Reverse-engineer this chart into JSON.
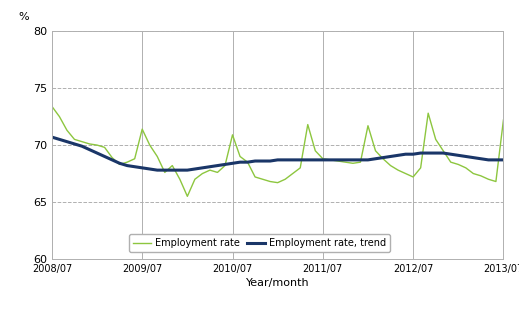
{
  "title": "",
  "ylabel": "%",
  "xlabel": "Year/month",
  "ylim": [
    60,
    80
  ],
  "yticks": [
    60,
    65,
    70,
    75,
    80
  ],
  "background_color": "#ffffff",
  "employment_rate_color": "#8dc63f",
  "trend_color": "#1a3668",
  "employment_rate_label": "Employment rate",
  "trend_label": "Employment rate, trend",
  "x_tick_labels": [
    "2008/07",
    "2009/07",
    "2010/07",
    "2011/07",
    "2012/07",
    "2013/07"
  ],
  "x_tick_positions": [
    0,
    12,
    24,
    36,
    48,
    60
  ],
  "employment_rate": [
    73.4,
    72.5,
    71.3,
    70.5,
    70.3,
    70.1,
    70.0,
    69.8,
    68.9,
    68.3,
    68.5,
    68.8,
    71.4,
    70.0,
    69.0,
    67.6,
    68.2,
    67.0,
    65.5,
    67.0,
    67.5,
    67.8,
    67.6,
    68.2,
    70.9,
    69.0,
    68.5,
    67.2,
    67.0,
    66.8,
    66.7,
    67.0,
    67.5,
    68.0,
    71.8,
    69.5,
    68.8,
    68.7,
    68.6,
    68.5,
    68.4,
    68.5,
    71.7,
    69.5,
    68.8,
    68.2,
    67.8,
    67.5,
    67.2,
    68.0,
    72.8,
    70.5,
    69.5,
    68.5,
    68.3,
    68.0,
    67.5,
    67.3,
    67.0,
    66.8,
    72.2
  ],
  "trend": [
    70.7,
    70.5,
    70.3,
    70.1,
    69.9,
    69.6,
    69.3,
    69.0,
    68.7,
    68.4,
    68.2,
    68.1,
    68.0,
    67.9,
    67.8,
    67.8,
    67.8,
    67.8,
    67.8,
    67.9,
    68.0,
    68.1,
    68.2,
    68.3,
    68.4,
    68.5,
    68.5,
    68.6,
    68.6,
    68.6,
    68.7,
    68.7,
    68.7,
    68.7,
    68.7,
    68.7,
    68.7,
    68.7,
    68.7,
    68.7,
    68.7,
    68.7,
    68.7,
    68.8,
    68.9,
    69.0,
    69.1,
    69.2,
    69.2,
    69.3,
    69.3,
    69.3,
    69.3,
    69.2,
    69.1,
    69.0,
    68.9,
    68.8,
    68.7,
    68.7,
    68.7
  ]
}
